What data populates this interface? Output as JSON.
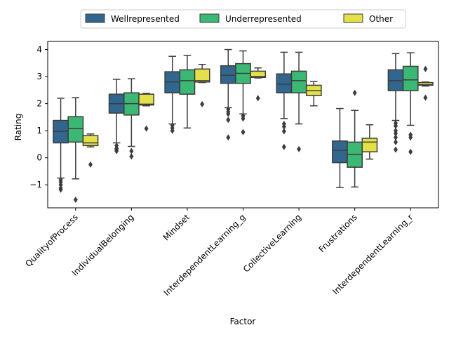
{
  "chart_data": {
    "type": "box",
    "xlabel": "Factor",
    "ylabel": "Rating",
    "ylim": [
      -1.85,
      4.3
    ],
    "yticks": [
      -1,
      0,
      1,
      2,
      3,
      4
    ],
    "categories": [
      "QualityofProcess",
      "IndividualBelonging",
      "Mindset",
      "InterdependentLearning_g",
      "CollectiveLearning",
      "Frustrations",
      "InterdependentLearning_r"
    ],
    "legend_position": "top-center",
    "grid": false,
    "series": [
      {
        "name": "Wellrepresented",
        "color": "#31678e",
        "boxes": [
          {
            "whislo": -0.75,
            "q1": 0.55,
            "med": 0.98,
            "q3": 1.38,
            "whishi": 2.2,
            "fliers": [
              -0.82,
              -0.9,
              -1.0,
              -1.12,
              -1.18
            ]
          },
          {
            "whislo": 0.55,
            "q1": 1.65,
            "med": 2.0,
            "q3": 2.35,
            "whishi": 2.9,
            "fliers": [
              0.45,
              0.35,
              0.3,
              0.25
            ]
          },
          {
            "whislo": 1.25,
            "q1": 2.4,
            "med": 2.8,
            "q3": 3.18,
            "whishi": 3.75,
            "fliers": [
              1.2,
              1.1,
              1.0
            ]
          },
          {
            "whislo": 1.85,
            "q1": 2.75,
            "med": 3.05,
            "q3": 3.4,
            "whishi": 4.0,
            "fliers": [
              1.8,
              1.7,
              1.62,
              1.4,
              0.75
            ]
          },
          {
            "whislo": 1.45,
            "q1": 2.4,
            "med": 2.72,
            "q3": 3.1,
            "whishi": 3.9,
            "fliers": [
              1.25,
              1.15,
              0.98,
              0.4
            ]
          },
          {
            "whislo": -1.1,
            "q1": -0.18,
            "med": 0.28,
            "q3": 0.62,
            "whishi": 1.82,
            "fliers": []
          },
          {
            "whislo": 1.38,
            "q1": 2.48,
            "med": 2.85,
            "q3": 3.25,
            "whishi": 3.85,
            "fliers": [
              1.28,
              1.18,
              1.0,
              0.9,
              0.75,
              0.58,
              0.3
            ]
          }
        ]
      },
      {
        "name": "Underrepresented",
        "color": "#3bb874",
        "boxes": [
          {
            "whislo": -0.78,
            "q1": 0.58,
            "med": 1.08,
            "q3": 1.52,
            "whishi": 2.22,
            "fliers": [
              -1.55
            ]
          },
          {
            "whislo": 0.42,
            "q1": 1.58,
            "med": 2.0,
            "q3": 2.4,
            "whishi": 2.92,
            "fliers": [
              0.25,
              0.05
            ]
          },
          {
            "whislo": 1.1,
            "q1": 2.35,
            "med": 2.85,
            "q3": 3.25,
            "whishi": 3.78,
            "fliers": []
          },
          {
            "whislo": 1.62,
            "q1": 2.75,
            "med": 3.12,
            "q3": 3.48,
            "whishi": 3.95,
            "fliers": [
              1.55,
              1.45,
              0.95
            ]
          },
          {
            "whislo": 1.25,
            "q1": 2.4,
            "med": 2.85,
            "q3": 3.2,
            "whishi": 3.9,
            "fliers": [
              0.32
            ]
          },
          {
            "whislo": -1.08,
            "q1": -0.35,
            "med": 0.12,
            "q3": 0.58,
            "whishi": 1.75,
            "fliers": [
              2.4
            ]
          },
          {
            "whislo": 1.2,
            "q1": 2.48,
            "med": 2.88,
            "q3": 3.38,
            "whishi": 3.88,
            "fliers": [
              0.85,
              0.75,
              0.22
            ]
          }
        ]
      },
      {
        "name": "Other",
        "color": "#e4e04a",
        "boxes": [
          {
            "whislo": 0.4,
            "q1": 0.45,
            "med": 0.55,
            "q3": 0.82,
            "whishi": 0.88,
            "fliers": [
              -0.25
            ]
          },
          {
            "whislo": 1.92,
            "q1": 1.95,
            "med": 1.98,
            "q3": 2.35,
            "whishi": 2.38,
            "fliers": [
              1.08
            ]
          },
          {
            "whislo": 2.78,
            "q1": 2.8,
            "med": 2.85,
            "q3": 3.28,
            "whishi": 3.45,
            "fliers": [
              1.98
            ]
          },
          {
            "whislo": 2.95,
            "q1": 2.97,
            "med": 3.0,
            "q3": 3.2,
            "whishi": 3.32,
            "fliers": [
              2.2
            ]
          },
          {
            "whislo": 1.92,
            "q1": 2.3,
            "med": 2.48,
            "q3": 2.68,
            "whishi": 2.82,
            "fliers": []
          },
          {
            "whislo": -0.05,
            "q1": 0.22,
            "med": 0.58,
            "q3": 0.72,
            "whishi": 1.22,
            "fliers": []
          },
          {
            "whislo": 2.65,
            "q1": 2.68,
            "med": 2.7,
            "q3": 2.78,
            "whishi": 2.8,
            "fliers": [
              3.28,
              2.22
            ]
          }
        ]
      }
    ]
  }
}
